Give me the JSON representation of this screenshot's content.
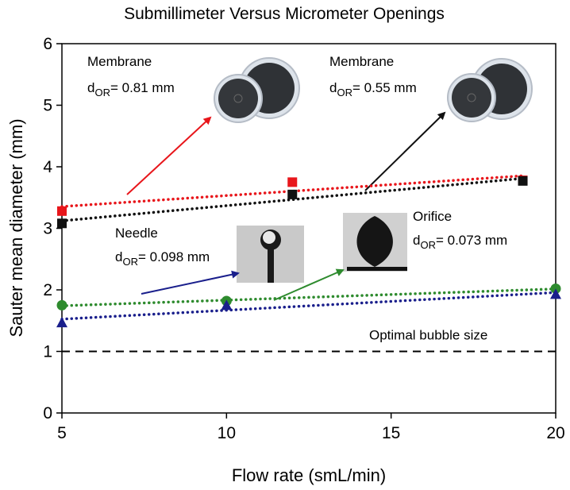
{
  "chart_data": {
    "type": "scatter",
    "title": "Submillimeter Versus Micrometer Openings",
    "x_label": "Flow rate (smL/min)",
    "y_label": "Sauter mean diameter (mm)",
    "xlim": [
      5,
      20
    ],
    "xticks": [
      5,
      10,
      15,
      20
    ],
    "ylim": [
      0,
      6
    ],
    "yticks": [
      0,
      1,
      2,
      3,
      4,
      5,
      6
    ],
    "trendline": true,
    "series": [
      {
        "color": "#e8161b",
        "marker": "square",
        "x": [
          5,
          12,
          19
        ],
        "values": [
          3.28,
          3.75,
          3.78
        ]
      },
      {
        "color": "#111111",
        "marker": "square",
        "x": [
          5,
          12,
          19
        ],
        "values": [
          3.08,
          3.55,
          3.77
        ]
      },
      {
        "color": "#2e8b2e",
        "marker": "circle",
        "x": [
          5,
          10,
          20
        ],
        "values": [
          1.75,
          1.82,
          2.02
        ]
      },
      {
        "color": "#1a1f8c",
        "marker": "triangle",
        "x": [
          5,
          10,
          20
        ],
        "values": [
          1.47,
          1.75,
          1.93
        ]
      }
    ],
    "reference_line": {
      "value": 1,
      "label": "Optimal bubble size"
    },
    "annotations": [
      {
        "title": "Membrane",
        "d": "d",
        "sub": "OR",
        "text": "= 0.81 mm"
      },
      {
        "title": "Membrane",
        "d": "d",
        "sub": "OR",
        "text": "= 0.55 mm"
      },
      {
        "title": "Needle",
        "d": "d",
        "sub": "OR",
        "text": "= 0.098 mm"
      },
      {
        "title": "Orifice",
        "d": "d",
        "sub": "OR",
        "text": "= 0.073 mm"
      }
    ]
  }
}
